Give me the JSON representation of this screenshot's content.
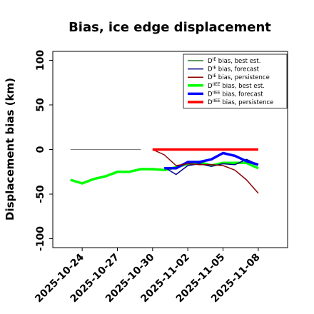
{
  "chart_data": {
    "type": "line",
    "title": "Bias, ice edge displacement",
    "xlabel": "",
    "ylabel": "Displacement bias (km)",
    "ylim": [
      -110,
      110
    ],
    "xlim": [
      "2025-10-21T12",
      "2025-11-10T12"
    ],
    "yticks": [
      100,
      50,
      0,
      -50,
      -100
    ],
    "xticks": [
      {
        "date": "2025-10-24",
        "label": "2025-10-24",
        "color": "#000000"
      },
      {
        "date": "2025-10-27",
        "label": "2025-10-27",
        "color": "#000000"
      },
      {
        "date": "2025-10-30",
        "label": "2025-10-30",
        "color": "#008000"
      },
      {
        "date": "2025-11-02",
        "label": "2025-11-02",
        "color": "#000000"
      },
      {
        "date": "2025-11-05",
        "label": "2025-11-05",
        "color": "#000000"
      },
      {
        "date": "2025-11-08",
        "label": "2025-11-08",
        "color": "#000000"
      }
    ],
    "grid": false,
    "legend_position": "top-right",
    "series": [
      {
        "name": "D^IE bias, best est.",
        "sup": "IE",
        "label_prefix": "D",
        "label_suffix": " bias, best est.",
        "color": "#808080",
        "legend_color": "#006400",
        "width": 1.2,
        "x": [
          "2025-10-23",
          "2025-10-29"
        ],
        "y": [
          0,
          0
        ]
      },
      {
        "name": "D^IE bias, forecast",
        "sup": "IE",
        "label_prefix": "D",
        "label_suffix": " bias, forecast",
        "color": "#00008b",
        "width": 1.5,
        "x": [
          "2025-10-31",
          "2025-11-01",
          "2025-11-02",
          "2025-11-03",
          "2025-11-04",
          "2025-11-05",
          "2025-11-06",
          "2025-11-07",
          "2025-11-08"
        ],
        "y": [
          -20,
          -28,
          -18,
          -16,
          -19,
          -16,
          -17,
          -11,
          -17
        ]
      },
      {
        "name": "D^IE bias, persistence",
        "sup": "IE",
        "label_prefix": "D",
        "label_suffix": " bias, persistence",
        "color": "#8b0000",
        "width": 1.5,
        "x": [
          "2025-10-30",
          "2025-10-31",
          "2025-11-01",
          "2025-11-02",
          "2025-11-03",
          "2025-11-04",
          "2025-11-05",
          "2025-11-06",
          "2025-11-07",
          "2025-11-08"
        ],
        "y": [
          0,
          -6,
          -18,
          -16,
          -17,
          -17,
          -18,
          -23,
          -34,
          -49
        ]
      },
      {
        "name": "D^IIEE bias, best est.",
        "sup": "IIEE",
        "label_prefix": "D",
        "label_suffix": " bias, best est.",
        "color": "#00ff00",
        "width": 3.5,
        "x": [
          "2025-10-23",
          "2025-10-24",
          "2025-10-25",
          "2025-10-26",
          "2025-10-27",
          "2025-10-28",
          "2025-10-29",
          "2025-10-30",
          "2025-10-31",
          "2025-11-01",
          "2025-11-02",
          "2025-11-03",
          "2025-11-04",
          "2025-11-05",
          "2025-11-06",
          "2025-11-07",
          "2025-11-08"
        ],
        "y": [
          -34,
          -38,
          -33,
          -30,
          -25,
          -25,
          -22,
          -22,
          -23,
          -20,
          -16,
          -14,
          -18,
          -15,
          -15,
          -15,
          -21
        ]
      },
      {
        "name": "D^IIEE bias, forecast",
        "sup": "IIEE",
        "label_prefix": "D",
        "label_suffix": " bias, forecast",
        "color": "#0000ff",
        "width": 3.5,
        "x": [
          "2025-10-31",
          "2025-11-01",
          "2025-11-02",
          "2025-11-03",
          "2025-11-04",
          "2025-11-05",
          "2025-11-06",
          "2025-11-07",
          "2025-11-08"
        ],
        "y": [
          -21,
          -21,
          -14,
          -14,
          -11,
          -4,
          -7,
          -13,
          -17
        ]
      },
      {
        "name": "D^IIEE bias, persistence",
        "sup": "IIEE",
        "label_prefix": "D",
        "label_suffix": " bias, persistence",
        "color": "#ff0000",
        "width": 3.5,
        "x": [
          "2025-10-30",
          "2025-11-08"
        ],
        "y": [
          0,
          0
        ]
      }
    ]
  }
}
